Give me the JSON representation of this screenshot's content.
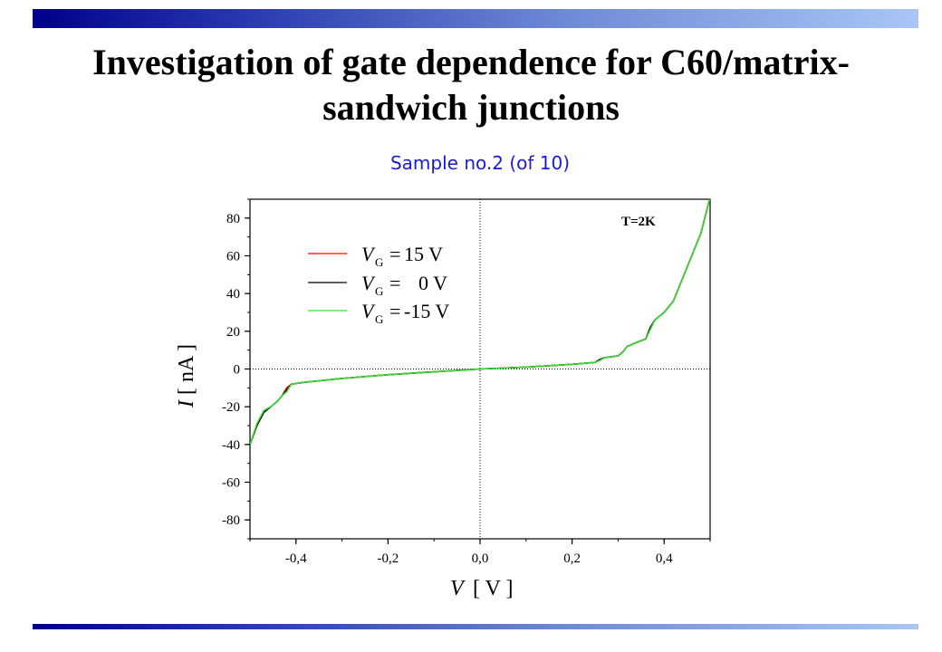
{
  "title": {
    "line1": "Investigation of gate dependence for C60/matrix-",
    "line2": "sandwich junctions"
  },
  "subtitle": "Sample no.2 (of 10)",
  "chart_data": {
    "type": "line",
    "annotation": "T=2K",
    "xlabel": {
      "symbol": "V",
      "unit": "[ V ]"
    },
    "ylabel": {
      "symbol": "I",
      "unit": "[ nA ]"
    },
    "xlim": [
      -0.5,
      0.5
    ],
    "ylim": [
      -90,
      90
    ],
    "xticks": [
      -0.4,
      -0.2,
      0.0,
      0.2,
      0.4
    ],
    "xtick_labels": [
      "-0,4",
      "-0,2",
      "0,0",
      "0,2",
      "0,4"
    ],
    "yticks": [
      -80,
      -60,
      -40,
      -20,
      0,
      20,
      40,
      60,
      80
    ],
    "ytick_labels": [
      "-80",
      "-60",
      "-40",
      "-20",
      "0",
      "20",
      "40",
      "60",
      "80"
    ],
    "zero_lines": "dotted",
    "legend_position": "top-left",
    "series": [
      {
        "name": "15 V",
        "gate_symbol": "V",
        "gate_sub": "G",
        "color": "#ff0000",
        "x": [
          -0.5,
          -0.485,
          -0.47,
          -0.455,
          -0.44,
          -0.43,
          -0.42,
          -0.41,
          -0.38,
          -0.3,
          -0.2,
          -0.1,
          0.0,
          0.1,
          0.2,
          0.25,
          0.26,
          0.27,
          0.3,
          0.31,
          0.32,
          0.34,
          0.36,
          0.37,
          0.38,
          0.4,
          0.42,
          0.44,
          0.46,
          0.48,
          0.5
        ],
        "y": [
          -40,
          -30,
          -23,
          -20,
          -17,
          -14,
          -10,
          -8,
          -7,
          -5,
          -3,
          -1.5,
          0,
          1,
          2.5,
          3.5,
          5,
          6,
          7,
          9,
          12,
          14,
          16,
          22,
          26,
          30,
          36,
          48,
          60,
          72,
          91
        ]
      },
      {
        "name": "0 V",
        "gate_symbol": "V",
        "gate_sub": "G",
        "color": "#000000",
        "x": [
          -0.5,
          -0.485,
          -0.47,
          -0.455,
          -0.44,
          -0.43,
          -0.42,
          -0.41,
          -0.38,
          -0.3,
          -0.2,
          -0.1,
          0.0,
          0.1,
          0.2,
          0.25,
          0.26,
          0.27,
          0.3,
          0.31,
          0.32,
          0.34,
          0.36,
          0.37,
          0.38,
          0.4,
          0.42,
          0.44,
          0.46,
          0.48,
          0.5
        ],
        "y": [
          -40,
          -30,
          -23,
          -20,
          -17,
          -14,
          -11,
          -8,
          -7,
          -5,
          -3,
          -1.5,
          0,
          1,
          2.5,
          3.5,
          5,
          6,
          7,
          9,
          12,
          14,
          16,
          22,
          26,
          30,
          36,
          48,
          60,
          72,
          91
        ]
      },
      {
        "name": "-15 V",
        "gate_symbol": "V",
        "gate_sub": "G",
        "color": "#33dd33",
        "x": [
          -0.5,
          -0.485,
          -0.47,
          -0.455,
          -0.44,
          -0.43,
          -0.42,
          -0.41,
          -0.38,
          -0.3,
          -0.2,
          -0.1,
          0.0,
          0.1,
          0.2,
          0.25,
          0.26,
          0.27,
          0.3,
          0.31,
          0.32,
          0.34,
          0.36,
          0.37,
          0.38,
          0.4,
          0.42,
          0.44,
          0.46,
          0.48,
          0.5
        ],
        "y": [
          -40,
          -29,
          -22,
          -20,
          -17,
          -14,
          -12,
          -8,
          -7,
          -5,
          -3,
          -1.5,
          0,
          1,
          2.5,
          3.5,
          4.5,
          6,
          7,
          9,
          12,
          14,
          16,
          21,
          26,
          30,
          36,
          48,
          60,
          72,
          91
        ]
      }
    ]
  }
}
